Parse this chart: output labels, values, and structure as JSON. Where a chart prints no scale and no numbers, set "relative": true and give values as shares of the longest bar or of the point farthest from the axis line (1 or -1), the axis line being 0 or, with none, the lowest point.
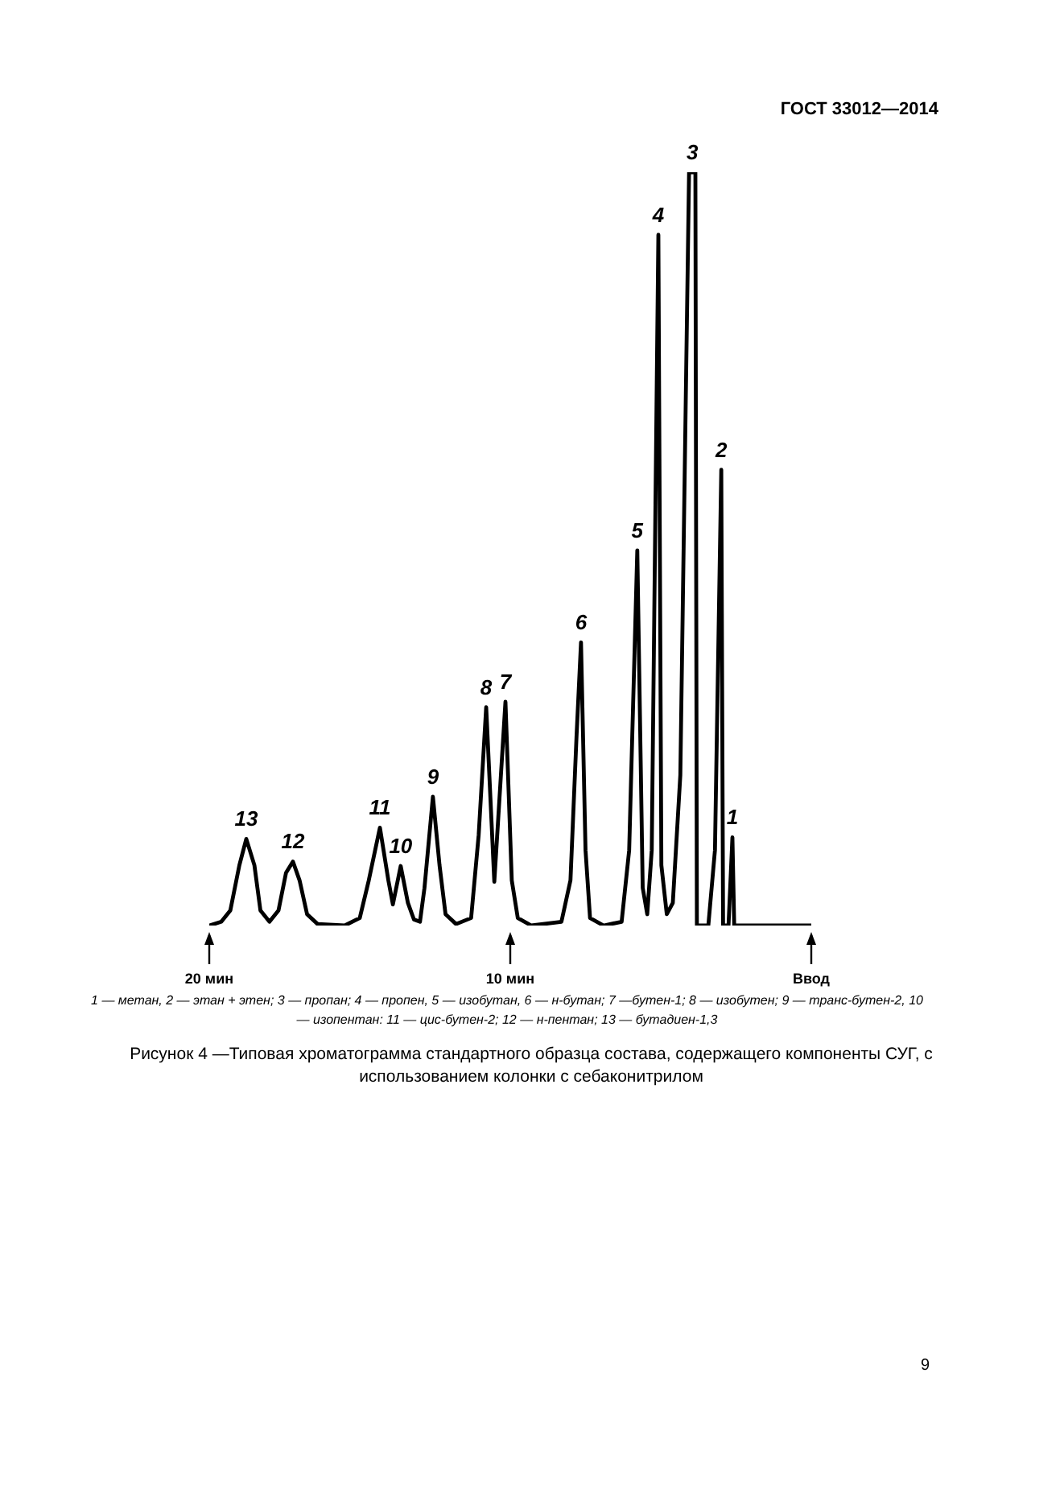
{
  "chart_data": {
    "type": "line",
    "relative": true,
    "title": "Рисунок 4 —Типовая хроматограмма стандартного образца состава, содержащего компоненты СУГ, с использованием колонки с себаконитрилом",
    "xlim": [
      20,
      0
    ],
    "xticks": [
      {
        "value": 20,
        "label": "20 мин"
      },
      {
        "value": 10,
        "label": "10 мин"
      },
      {
        "value": 0,
        "label": "Ввод"
      }
    ],
    "tick_labels": "x",
    "series": [
      {
        "color": "#000000",
        "x": [
          20.0,
          19.6,
          19.3,
          19.0,
          18.77,
          18.5,
          18.3,
          18.0,
          17.7,
          17.45,
          17.22,
          17.0,
          16.75,
          16.4,
          15.5,
          15.0,
          14.7,
          14.33,
          14.05,
          13.9,
          13.64,
          13.4,
          13.2,
          13.0,
          12.85,
          12.57,
          12.35,
          12.15,
          11.8,
          11.3,
          11.05,
          10.8,
          10.53,
          10.16,
          9.95,
          9.75,
          9.3,
          8.3,
          8.0,
          7.8,
          7.65,
          7.5,
          7.35,
          6.9,
          6.3,
          6.05,
          5.78,
          5.6,
          5.45,
          5.3,
          5.08,
          4.98,
          4.8,
          4.6,
          4.35,
          4.06,
          3.85,
          3.8,
          3.42,
          3.2,
          2.99,
          2.93,
          2.75,
          2.62,
          2.56,
          0
        ],
        "values": [
          0,
          0.005,
          0.02,
          0.08,
          0.115,
          0.08,
          0.02,
          0.005,
          0.02,
          0.07,
          0.085,
          0.06,
          0.015,
          0.002,
          0,
          0.01,
          0.06,
          0.13,
          0.06,
          0.028,
          0.079,
          0.03,
          0.008,
          0.005,
          0.05,
          0.171,
          0.08,
          0.015,
          0.002,
          0.01,
          0.12,
          0.29,
          0.058,
          0.297,
          0.06,
          0.01,
          0,
          0.005,
          0.06,
          0.25,
          0.376,
          0.1,
          0.01,
          0,
          0.005,
          0.1,
          0.498,
          0.05,
          0.015,
          0.1,
          0.917,
          0.08,
          0.015,
          0.03,
          0.2,
          1,
          1,
          0,
          0,
          0.1,
          0.605,
          0,
          0,
          0.117,
          0,
          0
        ]
      }
    ],
    "annotations": [
      "ГОСТ 33012—2014",
      "1 — метан, 2 — этан + этен; 3 — пропан; 4 — пропен, 5 — изобутан, 6 — н-бутан; 7 —бутен-1; 8 — изобутен; 9 — транс-бутен-2, 10 — изопентан: 11 — цис-бутен-2; 12 — н-пентан; 13 — бутадиен-1,3",
      "9",
      {
        "text": "1",
        "x": 2.62,
        "y": 0.117
      },
      {
        "text": "2",
        "x": 2.99,
        "y": 0.605
      },
      {
        "text": "3",
        "x": 3.95,
        "y": 1
      },
      {
        "text": "4",
        "x": 5.08,
        "y": 0.917
      },
      {
        "text": "5",
        "x": 5.78,
        "y": 0.498
      },
      {
        "text": "6",
        "x": 7.65,
        "y": 0.376
      },
      {
        "text": "7",
        "x": 10.16,
        "y": 0.297
      },
      {
        "text": "8",
        "x": 10.8,
        "y": 0.29
      },
      {
        "text": "9",
        "x": 12.57,
        "y": 0.171
      },
      {
        "text": "10",
        "x": 13.64,
        "y": 0.079
      },
      {
        "text": "11",
        "x": 14.33,
        "y": 0.13
      },
      {
        "text": "12",
        "x": 17.22,
        "y": 0.085
      },
      {
        "text": "13",
        "x": 18.77,
        "y": 0.115
      }
    ]
  }
}
